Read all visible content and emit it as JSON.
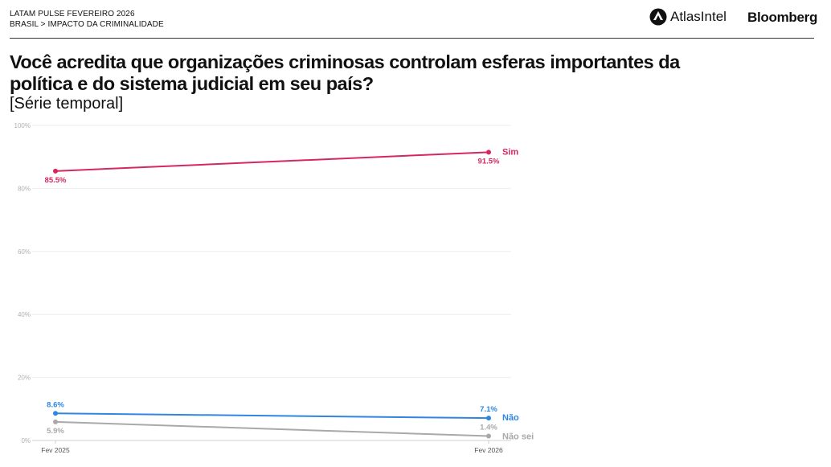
{
  "header": {
    "line1": "LATAM PULSE FEVEREIRO 2026",
    "line2": "BRASIL > IMPACTO DA CRIMINALIDADE",
    "brand_atlas": "AtlasIntel",
    "brand_bloomberg": "Bloomberg"
  },
  "title": "Você acredita que organizações criminosas controlam esferas importantes da política e do sistema judicial em seu país?",
  "subtitle": "[Série temporal]",
  "chart_data": {
    "type": "line",
    "x": [
      "Fev 2025",
      "Fev 2026"
    ],
    "ylim": [
      0,
      100
    ],
    "yticks": [
      0,
      20,
      40,
      60,
      80,
      100
    ],
    "ytick_labels": [
      "0%",
      "20%",
      "40%",
      "60%",
      "80%",
      "100%"
    ],
    "grid": true,
    "series": [
      {
        "name": "Sim",
        "values": [
          85.5,
          91.5
        ],
        "labels": [
          "85.5%",
          "91.5%"
        ],
        "color": "#d6275f"
      },
      {
        "name": "Não",
        "values": [
          8.6,
          7.1
        ],
        "labels": [
          "8.6%",
          "7.1%"
        ],
        "color": "#2f86e0"
      },
      {
        "name": "Não sei",
        "values": [
          5.9,
          1.4
        ],
        "labels": [
          "5.9%",
          "1.4%"
        ],
        "color": "#a9a9a9"
      }
    ]
  }
}
